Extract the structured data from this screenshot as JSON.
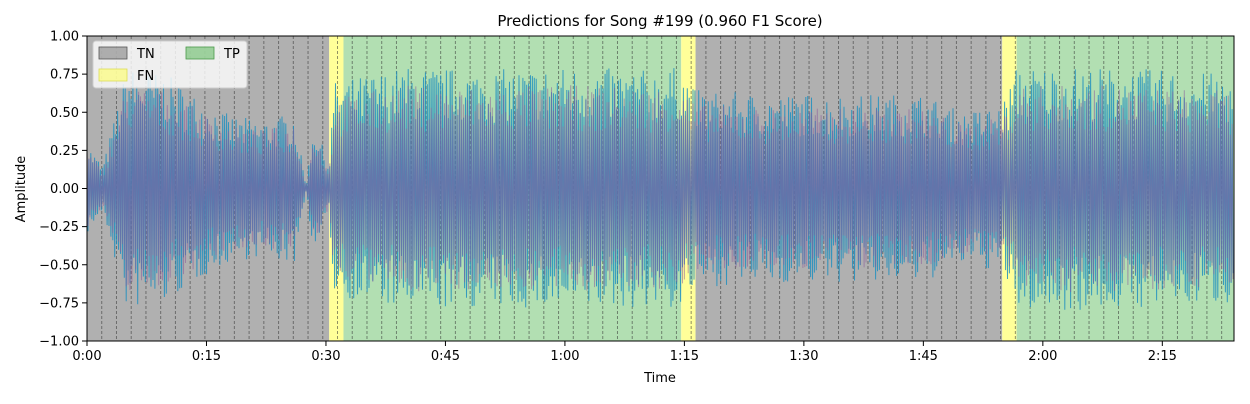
{
  "chart_data": {
    "type": "area",
    "title": "Predictions for Song #199 (0.960 F1 Score)",
    "xlabel": "Time",
    "ylabel": "Amplitude",
    "xlim": [
      0,
      144
    ],
    "ylim": [
      -1.0,
      1.0
    ],
    "x_unit": "seconds",
    "x_ticks": [
      {
        "value": 0,
        "label": "0:00"
      },
      {
        "value": 15,
        "label": "0:15"
      },
      {
        "value": 30,
        "label": "0:30"
      },
      {
        "value": 45,
        "label": "0:45"
      },
      {
        "value": 60,
        "label": "1:00"
      },
      {
        "value": 75,
        "label": "1:15"
      },
      {
        "value": 90,
        "label": "1:30"
      },
      {
        "value": 105,
        "label": "1:45"
      },
      {
        "value": 120,
        "label": "2:00"
      },
      {
        "value": 135,
        "label": "2:15"
      }
    ],
    "y_ticks": [
      {
        "value": 1.0,
        "label": "1.00"
      },
      {
        "value": 0.75,
        "label": "0.75"
      },
      {
        "value": 0.5,
        "label": "0.50"
      },
      {
        "value": 0.25,
        "label": "0.25"
      },
      {
        "value": 0.0,
        "label": "0.00"
      },
      {
        "value": -0.25,
        "label": "−0.25"
      },
      {
        "value": -0.5,
        "label": "−0.50"
      },
      {
        "value": -0.75,
        "label": "−0.75"
      },
      {
        "value": -1.0,
        "label": "−1.00"
      }
    ],
    "legend": {
      "placement": "top-left",
      "entries": [
        {
          "label": "TN",
          "color": "#808080"
        },
        {
          "label": "FN",
          "color": "#ffff66"
        },
        {
          "label": "TP",
          "color": "#66bb66"
        }
      ]
    },
    "segments": [
      {
        "label": "TN",
        "start": 0,
        "end": 30.4
      },
      {
        "label": "FN",
        "start": 30.4,
        "end": 32.2
      },
      {
        "label": "TP",
        "start": 32.2,
        "end": 74.6
      },
      {
        "label": "FN",
        "start": 74.6,
        "end": 76.4
      },
      {
        "label": "TN",
        "start": 76.4,
        "end": 114.9
      },
      {
        "label": "FN",
        "start": 114.9,
        "end": 116.7
      },
      {
        "label": "TP",
        "start": 116.7,
        "end": 144
      }
    ],
    "segment_colors": {
      "TN": "#b0b0b0",
      "FN": "#ffff99",
      "TP": "#b2dfb2"
    },
    "beat_interval_seconds": 1.85,
    "waveform_colors": {
      "predicted": "#1f8fbf",
      "overlay": "#8a5a9a"
    },
    "waveform_envelope": [
      {
        "t": 0,
        "amp": 0.3
      },
      {
        "t": 2,
        "amp": 0.15
      },
      {
        "t": 5,
        "amp": 0.8
      },
      {
        "t": 10,
        "amp": 0.75
      },
      {
        "t": 14,
        "amp": 0.6
      },
      {
        "t": 18,
        "amp": 0.48
      },
      {
        "t": 22,
        "amp": 0.45
      },
      {
        "t": 26,
        "amp": 0.5
      },
      {
        "t": 27.5,
        "amp": 0.02
      },
      {
        "t": 28.5,
        "amp": 0.45
      },
      {
        "t": 30.4,
        "amp": 0.15
      },
      {
        "t": 31,
        "amp": 0.7
      },
      {
        "t": 40,
        "amp": 0.8
      },
      {
        "t": 50,
        "amp": 0.78
      },
      {
        "t": 60,
        "amp": 0.8
      },
      {
        "t": 70,
        "amp": 0.78
      },
      {
        "t": 74.6,
        "amp": 0.8
      },
      {
        "t": 76.4,
        "amp": 0.65
      },
      {
        "t": 85,
        "amp": 0.62
      },
      {
        "t": 95,
        "amp": 0.62
      },
      {
        "t": 105,
        "amp": 0.62
      },
      {
        "t": 110,
        "amp": 0.5
      },
      {
        "t": 114.9,
        "amp": 0.55
      },
      {
        "t": 116.7,
        "amp": 0.8
      },
      {
        "t": 125,
        "amp": 0.8
      },
      {
        "t": 135,
        "amp": 0.78
      },
      {
        "t": 144,
        "amp": 0.75
      }
    ]
  }
}
